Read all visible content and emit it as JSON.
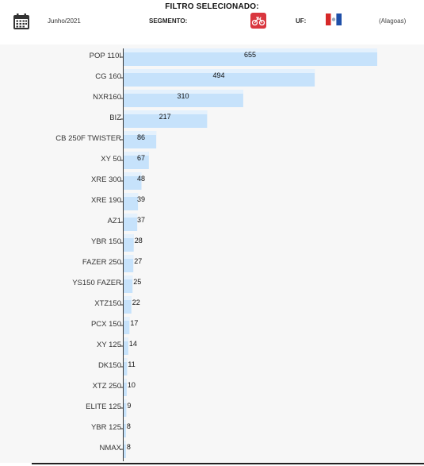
{
  "header": {
    "filter_title": "FILTRO SELECIONADO:",
    "period": "Junho/2021",
    "segment_label": "SEGMENTO:",
    "segment_icon": "motorcycle-icon",
    "uf_label": "UF:",
    "uf_icon": "alagoas-flag-icon",
    "uf_name": "(Alagoas)",
    "calendar_icon": "calendar-icon"
  },
  "colors": {
    "bar": "#c6e2fb",
    "bar_highlight": "#e4f1fd",
    "accent_red": "#d9363e",
    "background": "#f7f7f7"
  },
  "chart_data": {
    "type": "bar",
    "orientation": "horizontal",
    "title": "",
    "xlabel": "",
    "ylabel": "",
    "categories": [
      "POP 110I",
      "CG 160",
      "NXR160",
      "BIZ",
      "CB 250F TWISTER",
      "XY 50",
      "XRE 300",
      "XRE 190",
      "AZ1",
      "YBR 150",
      "FAZER 250",
      "YS150 FAZER",
      "XTZ150",
      "PCX 150",
      "XY 125",
      "DK150",
      "XTZ 250",
      "ELITE 125",
      "YBR 125",
      "NMAX"
    ],
    "values": [
      655,
      494,
      310,
      217,
      86,
      67,
      48,
      39,
      37,
      28,
      27,
      25,
      22,
      17,
      14,
      11,
      10,
      9,
      8,
      8
    ],
    "xlim": [
      0,
      655
    ],
    "grid": false,
    "legend": "none"
  }
}
